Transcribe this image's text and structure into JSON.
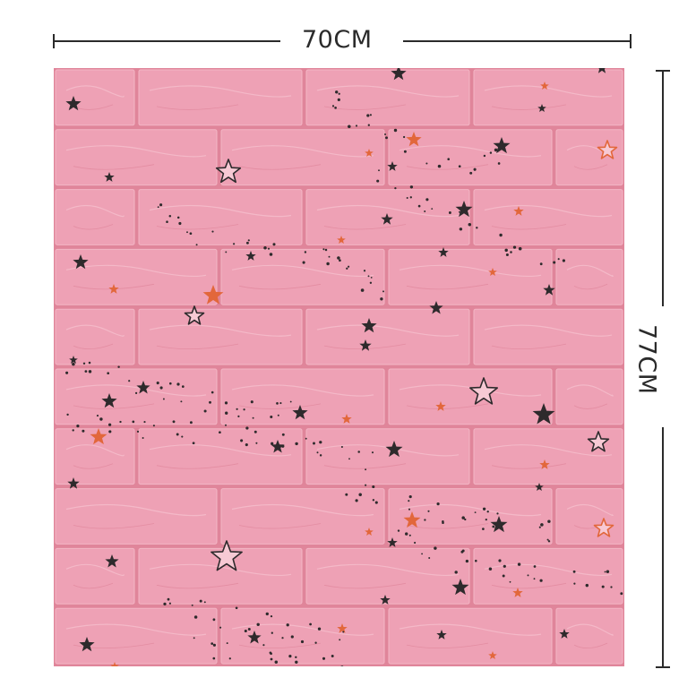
{
  "dimensions": {
    "width_label": "70CM",
    "height_label": "77CM"
  },
  "panel": {
    "brick_color": "#eea1b5",
    "mortar_color": "#e0859a",
    "dark_star_color": "#2e2a2c",
    "orange_star_color": "#e2673b"
  }
}
